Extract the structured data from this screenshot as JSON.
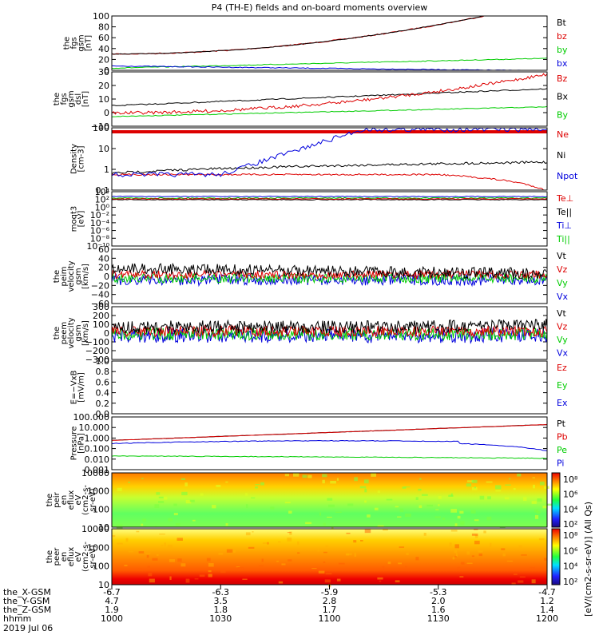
{
  "title": "P4 (TH-E) fields and on-board moments overview",
  "colors": {
    "black": "#000000",
    "red": "#dd0000",
    "green": "#00cc00",
    "blue": "#0000dd"
  },
  "panels": [
    {
      "id": "fgs_gsm",
      "ylabel": [
        "the",
        "fgs",
        "gsm",
        "[nT]"
      ],
      "ticks": [
        "100",
        "80",
        "60",
        "40",
        "20",
        "0"
      ],
      "legend": [
        {
          "t": "Bt",
          "c": "black"
        },
        {
          "t": "bz",
          "c": "red"
        },
        {
          "t": "by",
          "c": "green"
        },
        {
          "t": "bx",
          "c": "blue"
        }
      ]
    },
    {
      "id": "fgs_dsl",
      "ylabel": [
        "the",
        "fgs",
        "gsm",
        "dsl",
        "[nT]"
      ],
      "ticks": [
        "30",
        "20",
        "10",
        "0",
        "−10"
      ],
      "legend": [
        {
          "t": "Bz",
          "c": "red"
        },
        {
          "t": "Bx",
          "c": "black"
        },
        {
          "t": "By",
          "c": "green"
        }
      ]
    },
    {
      "id": "density",
      "ylabel": [
        "Density",
        "[cm-3]"
      ],
      "ticks": [
        "100",
        "10",
        "1",
        "0.1"
      ],
      "legend": [
        {
          "t": "Ne",
          "c": "red"
        },
        {
          "t": "Ni",
          "c": "black"
        },
        {
          "t": "Npot",
          "c": "blue"
        }
      ]
    },
    {
      "id": "temp",
      "ylabel": [
        "moqt3",
        "[eV]"
      ],
      "ticks": [
        "10⁴",
        "10²",
        "10⁰",
        "10⁻²",
        "10⁻⁴",
        "10⁻⁶",
        "10⁻⁸",
        "10⁻¹⁰"
      ],
      "legend": [
        {
          "t": "Te⊥",
          "c": "red"
        },
        {
          "t": "Te||",
          "c": "black"
        },
        {
          "t": "Ti⊥",
          "c": "blue"
        },
        {
          "t": "Ti||",
          "c": "green"
        }
      ]
    },
    {
      "id": "peim",
      "ylabel": [
        "the",
        "peim",
        "velocity",
        "gsm",
        "[km/s]"
      ],
      "ticks": [
        "60",
        "40",
        "20",
        "0",
        "−20",
        "−40",
        "−60"
      ],
      "legend": [
        {
          "t": "Vt",
          "c": "black"
        },
        {
          "t": "Vz",
          "c": "red"
        },
        {
          "t": "Vy",
          "c": "green"
        },
        {
          "t": "Vx",
          "c": "blue"
        }
      ]
    },
    {
      "id": "peem",
      "ylabel": [
        "the",
        "peem",
        "velocity",
        "gsm",
        "[km/s]"
      ],
      "ticks": [
        "300",
        "200",
        "100",
        "0",
        "−100",
        "−200",
        "−300"
      ],
      "legend": [
        {
          "t": "Vt",
          "c": "black"
        },
        {
          "t": "Vz",
          "c": "red"
        },
        {
          "t": "Vy",
          "c": "green"
        },
        {
          "t": "Vx",
          "c": "blue"
        }
      ]
    },
    {
      "id": "efield",
      "ylabel": [
        "E=−VxB",
        "[mV/m]"
      ],
      "ticks": [
        "1.0",
        "0.8",
        "0.6",
        "0.4",
        "0.2",
        "0.0"
      ],
      "legend": [
        {
          "t": "Ez",
          "c": "red"
        },
        {
          "t": "Ey",
          "c": "green"
        },
        {
          "t": "Ex",
          "c": "blue"
        }
      ]
    },
    {
      "id": "pressure",
      "ylabel": [
        "Pressure",
        "[nPa]"
      ],
      "ticks": [
        "100.000",
        "10.000",
        "1.000",
        "0.100",
        "0.010",
        "0.001"
      ],
      "legend": [
        {
          "t": "Pt",
          "c": "black"
        },
        {
          "t": "Pb",
          "c": "red"
        },
        {
          "t": "Pe",
          "c": "green"
        },
        {
          "t": "Pi",
          "c": "blue"
        }
      ]
    },
    {
      "id": "peir",
      "ylabel": [
        "the",
        "peir",
        "en",
        "eflux",
        "eV",
        "(cm2-s-",
        "sr-eV)"
      ],
      "ticks": [
        "10000",
        "1000",
        "100",
        "10"
      ],
      "legend": []
    },
    {
      "id": "peer",
      "ylabel": [
        "the",
        "peer",
        "en",
        "eflux",
        "eV",
        "(cm2-s-",
        "sr-eV)"
      ],
      "ticks": [
        "10000",
        "1000",
        "100",
        "10"
      ],
      "legend": []
    }
  ],
  "colorbar": {
    "ticks": [
      "10⁸",
      "10⁶",
      "10⁴",
      "10²"
    ],
    "ticks2": [
      "10⁸",
      "10⁶",
      "10⁴",
      "10²"
    ],
    "label": "[eV/(cm2-s-sr-eV)] (All Qs)"
  },
  "xaxis": {
    "rows": [
      {
        "label": "the_X-GSM",
        "vals": [
          "-6.7",
          "-6.3",
          "-5.9",
          "-5.3",
          "-4.7"
        ]
      },
      {
        "label": "the_Y-GSM",
        "vals": [
          "4.7",
          "3.5",
          "2.8",
          "2.0",
          "1.2"
        ]
      },
      {
        "label": "the_Z-GSM",
        "vals": [
          "1.9",
          "1.8",
          "1.7",
          "1.6",
          "1.4"
        ]
      },
      {
        "label": "hhmm",
        "vals": [
          "1000",
          "1030",
          "1100",
          "1130",
          "1200"
        ]
      }
    ],
    "date": "2019 Jul 06"
  },
  "chart_data": {
    "type": "line",
    "title": "P4 (TH-E) fields and on-board moments overview",
    "x_hhmm": [
      "1000",
      "1030",
      "1100",
      "1130",
      "1200"
    ],
    "series": [
      {
        "name": "Bt",
        "values": [
          30,
          35,
          48,
          75,
          110
        ]
      },
      {
        "name": "bz",
        "values": [
          30,
          35,
          48,
          75,
          110
        ]
      },
      {
        "name": "by",
        "values": [
          4,
          7,
          11,
          16,
          22
        ]
      },
      {
        "name": "bx",
        "values": [
          8,
          7,
          5,
          3,
          -1
        ]
      },
      {
        "name": "Ne",
        "values": [
          0.6,
          0.5,
          0.4,
          0.3,
          0.05
        ]
      },
      {
        "name": "Ni",
        "values": [
          0.5,
          0.9,
          1.2,
          1.6,
          1.0
        ]
      },
      {
        "name": "Npot",
        "values": [
          0.5,
          2,
          80,
          160,
          200
        ]
      },
      {
        "name": "Pt",
        "values": [
          0.6,
          1.3,
          3,
          8,
          20
        ]
      },
      {
        "name": "Pe",
        "values": [
          0.02,
          0.02,
          0.015,
          0.012,
          0.01
        ]
      },
      {
        "name": "Pi",
        "values": [
          0.3,
          0.45,
          0.5,
          0.3,
          0.04
        ]
      }
    ]
  }
}
